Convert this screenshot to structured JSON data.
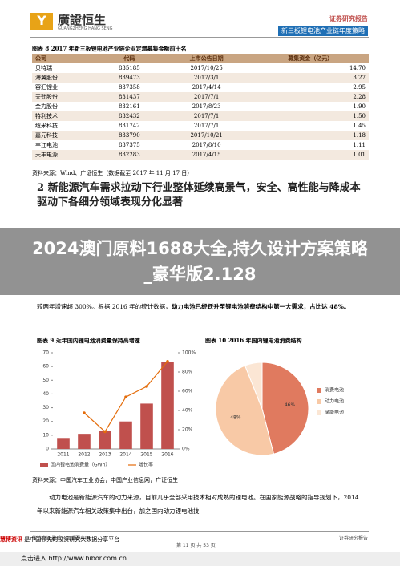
{
  "header": {
    "logo": "廣證恒生",
    "logo_sub": "GUANGZHENG HANG SENG",
    "report_type": "证券研究报告",
    "report_title": "新三板锂电池产业链年度策略"
  },
  "table": {
    "title": "图表 8 2017 年新三板锂电池产业链企业定增募集金额前十名",
    "columns": [
      "公司",
      "代码",
      "上市公告日期",
      "募集资金（亿元）"
    ],
    "rows": [
      [
        "贝特瑞",
        "835185",
        "2017/10/25",
        "14.70"
      ],
      [
        "海翼股份",
        "839473",
        "2017/3/1",
        "3.27"
      ],
      [
        "容汇锂业",
        "837358",
        "2017/4/14",
        "2.95"
      ],
      [
        "天劲股份",
        "831437",
        "2017/7/1",
        "2.28"
      ],
      [
        "金力股份",
        "832161",
        "2017/8/23",
        "1.90"
      ],
      [
        "特利技术",
        "832432",
        "2017/7/1",
        "1.50"
      ],
      [
        "纽米科技",
        "831742",
        "2017/7/1",
        "1.45"
      ],
      [
        "嘉元科技",
        "833790",
        "2017/10/21",
        "1.18"
      ],
      [
        "丰江电池",
        "837375",
        "2017/8/10",
        "1.11"
      ],
      [
        "天丰电源",
        "832283",
        "2017/4/15",
        "1.01"
      ]
    ],
    "source": "资料来源：Wind、广证恒生（数据截至 2017 年 11 月 17 日）"
  },
  "section_title": "2 新能源汽车需求拉动下行业整体延续高景气，安全、高性能与降成本驱动下各细分领域表现分化显著",
  "banner": "2024澳门原料1688大全,持久设计方案策略_豪华版2.128",
  "paragraph1": {
    "text": "较两年增速超 300%。根据 2016 年的统计数据，",
    "bold": "动力电池已经跃升至锂电池消费结构中第一大需求，占比达 48%。"
  },
  "chart_data": [
    {
      "type": "bar",
      "title": "图表 9 近年国内锂电池消费量保持高增速",
      "categories": [
        "2011",
        "2012",
        "2013",
        "2014",
        "2015",
        "2016"
      ],
      "series": [
        {
          "name": "国内锂电池消费量（GWh）",
          "color": "#c0504d",
          "values": [
            8,
            11,
            13,
            20,
            33,
            63
          ]
        },
        {
          "name": "增长率",
          "color": "#e46c0a",
          "type": "line",
          "axis": "y2",
          "values": [
            null,
            37.5,
            18,
            54,
            65,
            91
          ]
        }
      ],
      "ylim": [
        0,
        70
      ],
      "yticks": [
        0,
        10,
        20,
        30,
        40,
        50,
        60,
        70
      ],
      "y2lim": [
        0,
        100
      ],
      "y2ticks": [
        {
          "value": 0,
          "label": "0%"
        },
        {
          "value": 20,
          "label": "20%"
        },
        {
          "value": 40,
          "label": "40%"
        },
        {
          "value": 60,
          "label": "60%"
        },
        {
          "value": 80,
          "label": "80%"
        },
        {
          "value": 100,
          "label": "100%"
        }
      ]
    },
    {
      "type": "pie",
      "title": "图表 10 2016 年国内锂电池消费结构",
      "categories": [
        "消费电池",
        "动力电池",
        "储能电池"
      ],
      "values": [
        46,
        48,
        6
      ],
      "value_labels": [
        "46%",
        "48%",
        null
      ],
      "colors": [
        "#e07a5f",
        "#f8c9a6",
        "#fbe6d4"
      ]
    }
  ],
  "source2": "资料来源：中国汽车工业协会，中国产业信息网，广证恒生",
  "paragraph2": "动力电池是新能源汽车的动力来源，目前几乎全部采用技术相对成熟的锂电池。在国家能源战略的指导规划下，2014 年以来新能源汽车相关政策集中出台，加之国内动力锂电池技",
  "footer": {
    "left": "敬请参阅最后一页重要声明",
    "page": "第 11 页 共 53 页",
    "right": "证券研究报告"
  },
  "bottom_bar": {
    "brand": "慧博资讯",
    "slogan": "是中国领先的投资研究大数据分享平台",
    "link": "点击进入 http://www.hibor.com.cn"
  }
}
